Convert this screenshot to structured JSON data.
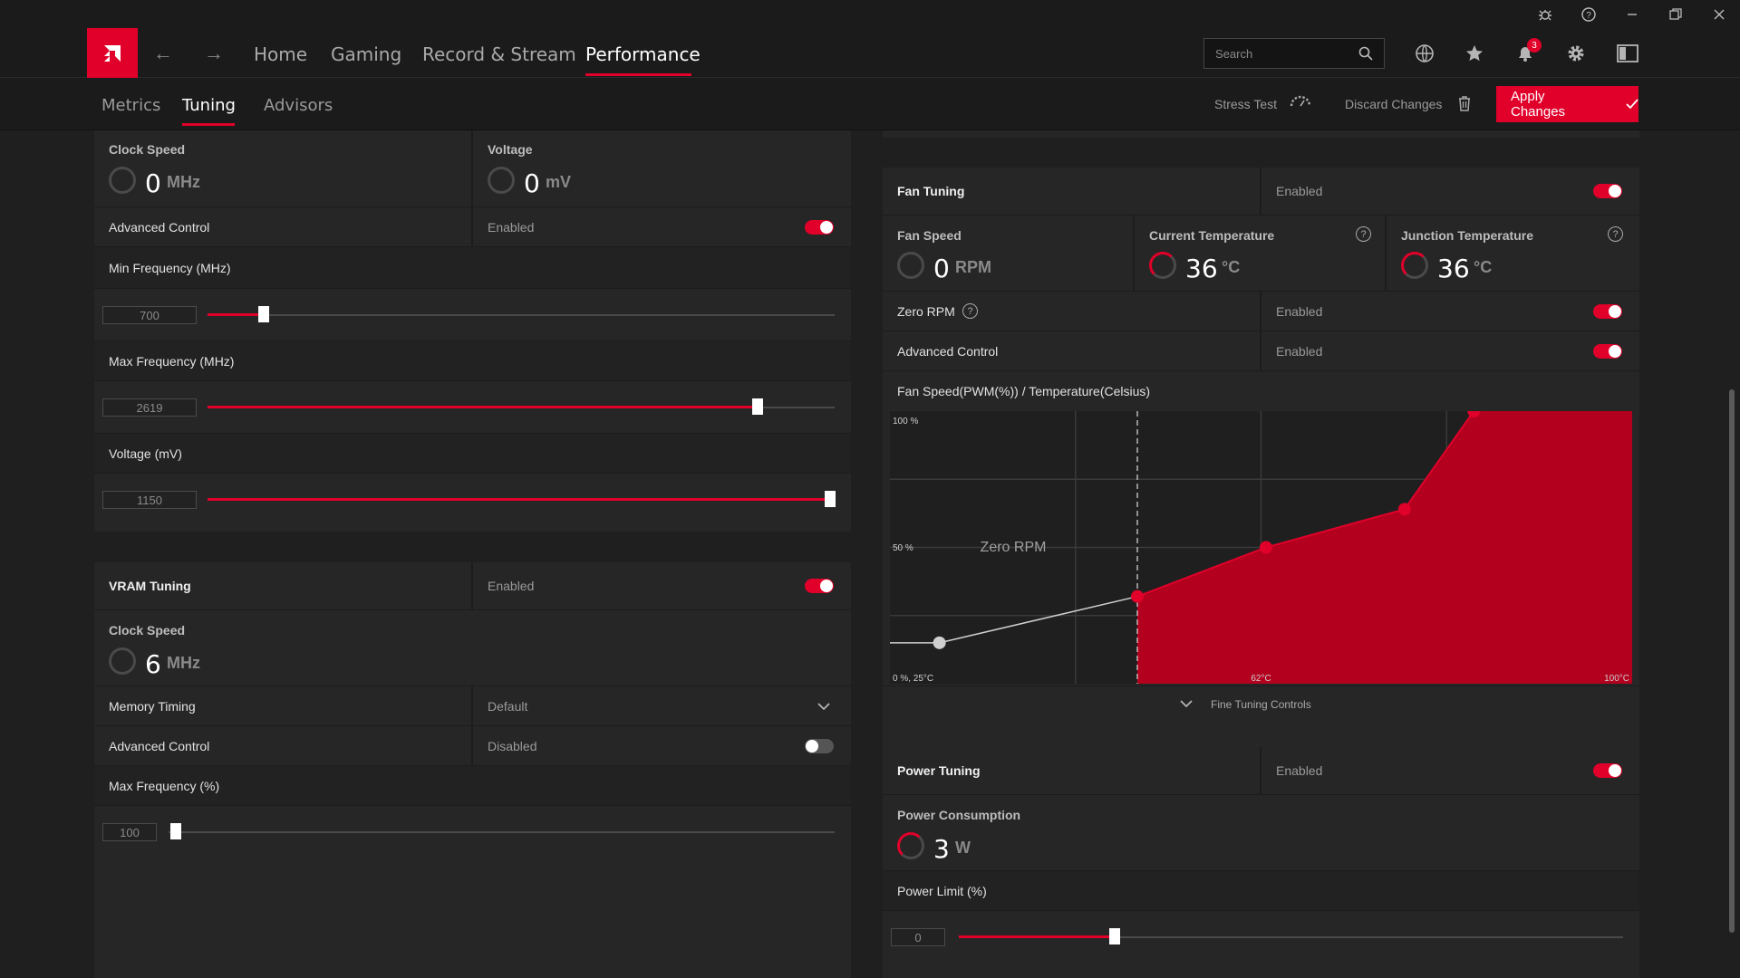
{
  "nav": {
    "items": [
      "Home",
      "Gaming",
      "Record & Stream",
      "Performance"
    ],
    "search_placeholder": "Search",
    "notifications_count": "3"
  },
  "subnav": {
    "tabs": [
      "Metrics",
      "Tuning",
      "Advisors"
    ],
    "stress_test": "Stress Test",
    "discard_changes": "Discard Changes",
    "apply_changes": "Apply Changes"
  },
  "gpu": {
    "clock_label": "Clock Speed",
    "clock_value": "0",
    "clock_unit": "MHz",
    "voltage_label": "Voltage",
    "voltage_value": "0",
    "voltage_unit": "mV",
    "advanced_label": "Advanced Control",
    "advanced_state": "Enabled",
    "min_freq_label": "Min Frequency (MHz)",
    "min_freq_value": "700",
    "max_freq_label": "Max Frequency (MHz)",
    "max_freq_value": "2619",
    "volt_label": "Voltage (mV)",
    "volt_value": "1150"
  },
  "vram": {
    "title": "VRAM Tuning",
    "state": "Enabled",
    "clock_label": "Clock Speed",
    "clock_value": "6",
    "clock_unit": "MHz",
    "timing_label": "Memory Timing",
    "timing_value": "Default",
    "advanced_label": "Advanced Control",
    "advanced_state": "Disabled",
    "max_freq_label": "Max Frequency (%)",
    "max_freq_value": "100"
  },
  "fan": {
    "title": "Fan Tuning",
    "state": "Enabled",
    "speed_label": "Fan Speed",
    "speed_value": "0",
    "speed_unit": "RPM",
    "cur_temp_label": "Current Temperature",
    "cur_temp_value": "36",
    "temp_unit": "°C",
    "junction_label": "Junction Temperature",
    "junction_value": "36",
    "zero_rpm_label": "Zero RPM",
    "zero_rpm_state": "Enabled",
    "advanced_label": "Advanced Control",
    "advanced_state": "Enabled",
    "curve_title": "Fan Speed(PWM(%)) / Temperature(Celsius)",
    "fine_tuning": "Fine Tuning Controls"
  },
  "chart_data": {
    "type": "area",
    "title": "Fan Speed(PWM(%)) / Temperature(Celsius)",
    "xlabel": "Temperature(Celsius)",
    "ylabel": "Fan Speed(PWM(%))",
    "x_tick_labels": [
      "0 %, 25°C",
      "62°C",
      "100°C"
    ],
    "y_tick_labels": [
      "100 %",
      "50 %"
    ],
    "annotation": "Zero RPM",
    "xlim": [
      25,
      100
    ],
    "ylim": [
      0,
      100
    ],
    "zero_rpm_stop_temp": 50,
    "series": [
      {
        "x": [
          30,
          50,
          63,
          77,
          84
        ],
        "y": [
          15,
          32,
          50,
          64,
          100
        ]
      }
    ]
  },
  "power": {
    "title": "Power Tuning",
    "state": "Enabled",
    "consumption_label": "Power Consumption",
    "consumption_value": "3",
    "consumption_unit": "W",
    "limit_label": "Power Limit (%)",
    "limit_value": "0"
  },
  "colors": {
    "accent": "#e0002a",
    "background": "#1f1f1f",
    "panel": "#262626"
  }
}
